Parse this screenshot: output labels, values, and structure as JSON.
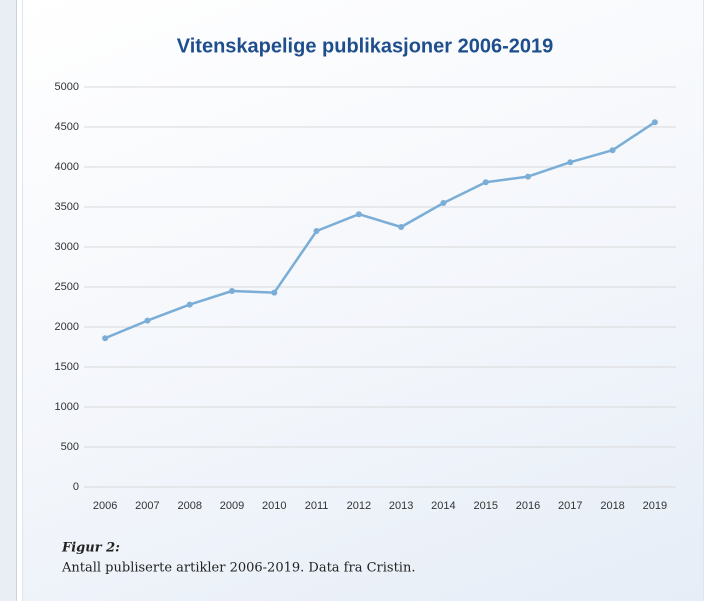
{
  "chart_data": {
    "type": "line",
    "title": "Vitenskapelige publikasjoner 2006-2019",
    "categories": [
      "2006",
      "2007",
      "2008",
      "2009",
      "2010",
      "2011",
      "2012",
      "2013",
      "2014",
      "2015",
      "2016",
      "2017",
      "2018",
      "2019"
    ],
    "values": [
      1860,
      2080,
      2280,
      2450,
      2430,
      3200,
      3410,
      3250,
      3550,
      3810,
      3880,
      4060,
      4210,
      4560
    ],
    "color": "#7aaed6",
    "ylim": [
      0,
      5000
    ],
    "yticks": [
      0,
      500,
      1000,
      1500,
      2000,
      2500,
      3000,
      3500,
      4000,
      4500,
      5000
    ],
    "grid": true
  },
  "caption": {
    "label": "Figur 2:",
    "text": "Antall publiserte artikler 2006-2019. Data fra Cristin."
  }
}
